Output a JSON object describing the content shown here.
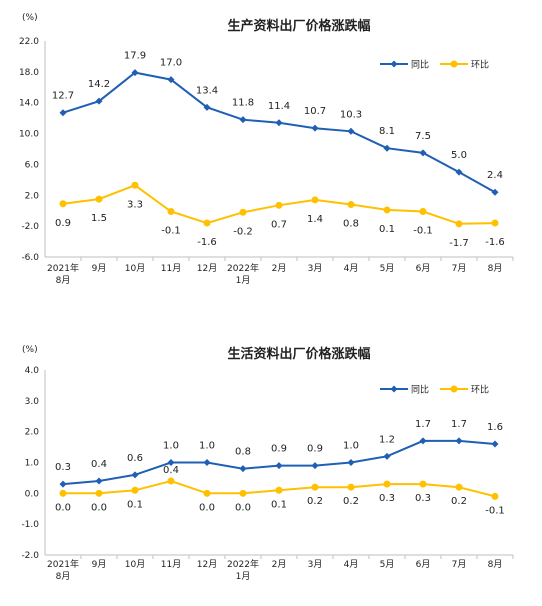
{
  "colors": {
    "series1": "#1f5fb4",
    "series2": "#ffc000",
    "axis": "#bfbfbf",
    "text": "#222222"
  },
  "chart_data": [
    {
      "type": "line",
      "title": "生产资料出厂价格涨跌幅",
      "unit_label": "(%)",
      "categories": [
        [
          "2021年",
          "8月"
        ],
        [
          "9月"
        ],
        [
          "10月"
        ],
        [
          "11月"
        ],
        [
          "12月"
        ],
        [
          "2022年",
          "1月"
        ],
        [
          "2月"
        ],
        [
          "3月"
        ],
        [
          "4月"
        ],
        [
          "5月"
        ],
        [
          "6月"
        ],
        [
          "7月"
        ],
        [
          "8月"
        ]
      ],
      "ylim": [
        -6,
        22
      ],
      "yticks": [
        "22.0",
        "18.0",
        "14.0",
        "10.0",
        "6.0",
        "2.0",
        "-2.0",
        "-6.0"
      ],
      "legend": "top-right",
      "grid": false,
      "series": [
        {
          "name": "同比",
          "values": [
            12.7,
            14.2,
            17.9,
            17.0,
            13.4,
            11.8,
            11.4,
            10.7,
            10.3,
            8.1,
            7.5,
            5.0,
            2.4
          ],
          "labels": [
            "12.7",
            "14.2",
            "17.9",
            "17.0",
            "13.4",
            "11.8",
            "11.4",
            "10.7",
            "10.3",
            "8.1",
            "7.5",
            "5.0",
            "2.4"
          ]
        },
        {
          "name": "环比",
          "values": [
            0.9,
            1.5,
            3.3,
            -0.1,
            -1.6,
            -0.2,
            0.7,
            1.4,
            0.8,
            0.1,
            -0.1,
            -1.7,
            -1.6
          ],
          "labels": [
            "0.9",
            "1.5",
            "3.3",
            "-0.1",
            "-1.6",
            "-0.2",
            "0.7",
            "1.4",
            "0.8",
            "0.1",
            "-0.1",
            "-1.7",
            "-1.6"
          ]
        }
      ]
    },
    {
      "type": "line",
      "title": "生活资料出厂价格涨跌幅",
      "unit_label": "(%)",
      "categories": [
        [
          "2021年",
          "8月"
        ],
        [
          "9月"
        ],
        [
          "10月"
        ],
        [
          "11月"
        ],
        [
          "12月"
        ],
        [
          "2022年",
          "1月"
        ],
        [
          "2月"
        ],
        [
          "3月"
        ],
        [
          "4月"
        ],
        [
          "5月"
        ],
        [
          "6月"
        ],
        [
          "7月"
        ],
        [
          "8月"
        ]
      ],
      "ylim": [
        -2,
        4
      ],
      "yticks": [
        "4.0",
        "3.0",
        "2.0",
        "1.0",
        "0.0",
        "-1.0",
        "-2.0"
      ],
      "legend": "top-right",
      "grid": false,
      "series": [
        {
          "name": "同比",
          "values": [
            0.3,
            0.4,
            0.6,
            1.0,
            1.0,
            0.8,
            0.9,
            0.9,
            1.0,
            1.2,
            1.7,
            1.7,
            1.6
          ],
          "labels": [
            "0.3",
            "0.4",
            "0.6",
            "1.0",
            "1.0",
            "0.8",
            "0.9",
            "0.9",
            "1.0",
            "1.2",
            "1.7",
            "1.7",
            "1.6"
          ]
        },
        {
          "name": "环比",
          "values": [
            0.0,
            0.0,
            0.1,
            0.4,
            0.0,
            0.0,
            0.1,
            0.2,
            0.2,
            0.3,
            0.3,
            0.2,
            -0.1
          ],
          "labels": [
            "0.0",
            "0.0",
            "0.1",
            "0.4",
            "0.0",
            "0.0",
            "0.1",
            "0.2",
            "0.2",
            "0.3",
            "0.3",
            "0.2",
            "-0.1"
          ]
        }
      ]
    }
  ]
}
